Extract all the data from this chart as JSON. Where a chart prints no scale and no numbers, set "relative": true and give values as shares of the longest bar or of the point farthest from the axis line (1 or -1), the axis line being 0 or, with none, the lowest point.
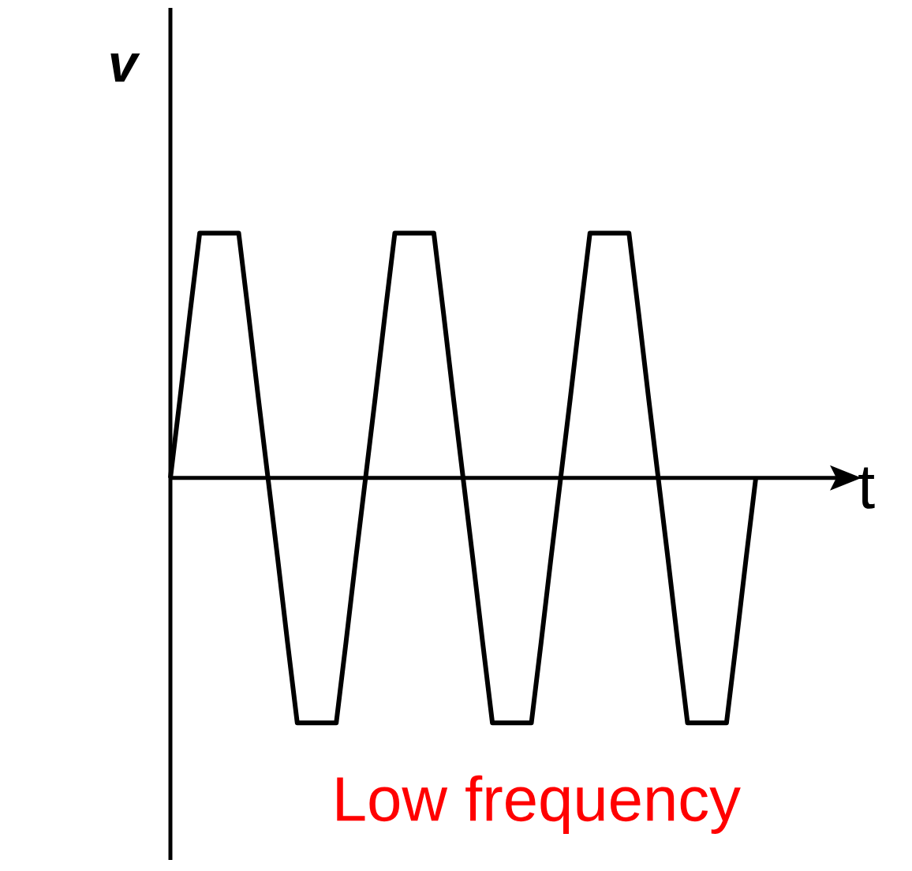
{
  "chart_data": {
    "type": "line",
    "relative": true,
    "xlabel": "t",
    "ylabel": "v",
    "color": "#000000",
    "categories": [
      null,
      null,
      null,
      null,
      null,
      null,
      null,
      null,
      null,
      null,
      null,
      null,
      null,
      null,
      null,
      null,
      null,
      null,
      null,
      null,
      null,
      null,
      null,
      null,
      null,
      null,
      null,
      null,
      null,
      null,
      null,
      null,
      null,
      null,
      null,
      null,
      null,
      null,
      null,
      null,
      null,
      null,
      null,
      null,
      null,
      null,
      null,
      null,
      null,
      null,
      null,
      null,
      null,
      null,
      null,
      null,
      null,
      null,
      null,
      null,
      null
    ],
    "values": [
      0,
      0.33,
      0.67,
      1,
      1,
      1,
      1,
      1,
      0.67,
      0.33,
      0,
      -0.33,
      -0.67,
      -1,
      -1,
      -1,
      -1,
      -1,
      -0.67,
      -0.33,
      0,
      0.33,
      0.67,
      1,
      1,
      1,
      1,
      1,
      0.67,
      0.33,
      0,
      -0.33,
      -0.67,
      -1,
      -1,
      -1,
      -1,
      -1,
      -0.67,
      -0.33,
      0,
      0.33,
      0.67,
      1,
      1,
      1,
      1,
      1,
      0.67,
      0.33,
      0,
      -0.33,
      -0.67,
      -1,
      -1,
      -1,
      -1,
      -1,
      -0.67,
      -0.33,
      0
    ],
    "annotations": [
      "Low frequency"
    ]
  }
}
